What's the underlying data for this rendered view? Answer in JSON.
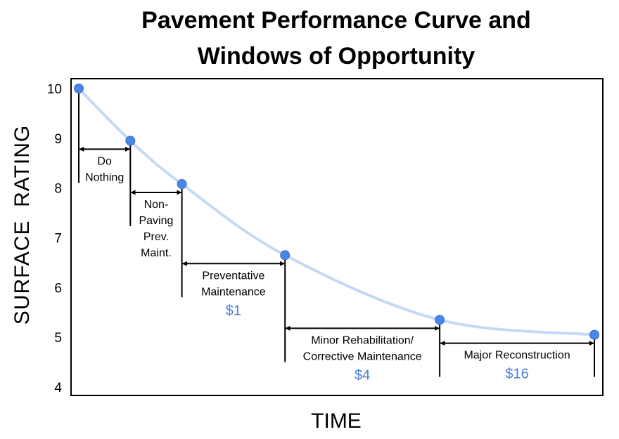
{
  "chart_data": {
    "type": "line",
    "title": [
      "Pavement Performance Curve and",
      "Windows of Opportunity"
    ],
    "xlabel": "TIME",
    "ylabel": "SURFACE  RATING",
    "ylim": [
      4,
      10
    ],
    "yticks": [
      "10",
      "9",
      "8",
      "7",
      "6",
      "5",
      "4"
    ],
    "grid": false,
    "legend": "none",
    "series_color": "#4a86e8",
    "curve_color": "#c5d9f5",
    "points": [
      {
        "x": 0.0,
        "y": 10.0
      },
      {
        "x": 1.0,
        "y": 8.95
      },
      {
        "x": 2.0,
        "y": 8.08
      },
      {
        "x": 4.0,
        "y": 6.65
      },
      {
        "x": 7.0,
        "y": 5.35
      },
      {
        "x": 10.0,
        "y": 5.05
      }
    ],
    "windows": [
      {
        "from_x": 0.0,
        "to_x": 1.0,
        "label": [
          "Do",
          "Nothing"
        ],
        "cost": ""
      },
      {
        "from_x": 1.0,
        "to_x": 2.0,
        "label": [
          "Non-",
          "Paving",
          "Prev.",
          "Maint."
        ],
        "cost": ""
      },
      {
        "from_x": 2.0,
        "to_x": 4.0,
        "label": [
          "Preventative",
          "Maintenance"
        ],
        "cost": "$1"
      },
      {
        "from_x": 4.0,
        "to_x": 7.0,
        "label": [
          "Minor Rehabilitation/",
          "Corrective Maintenance"
        ],
        "cost": "$4"
      },
      {
        "from_x": 7.0,
        "to_x": 10.0,
        "label": [
          "Major Reconstruction"
        ],
        "cost": "$16"
      }
    ]
  }
}
